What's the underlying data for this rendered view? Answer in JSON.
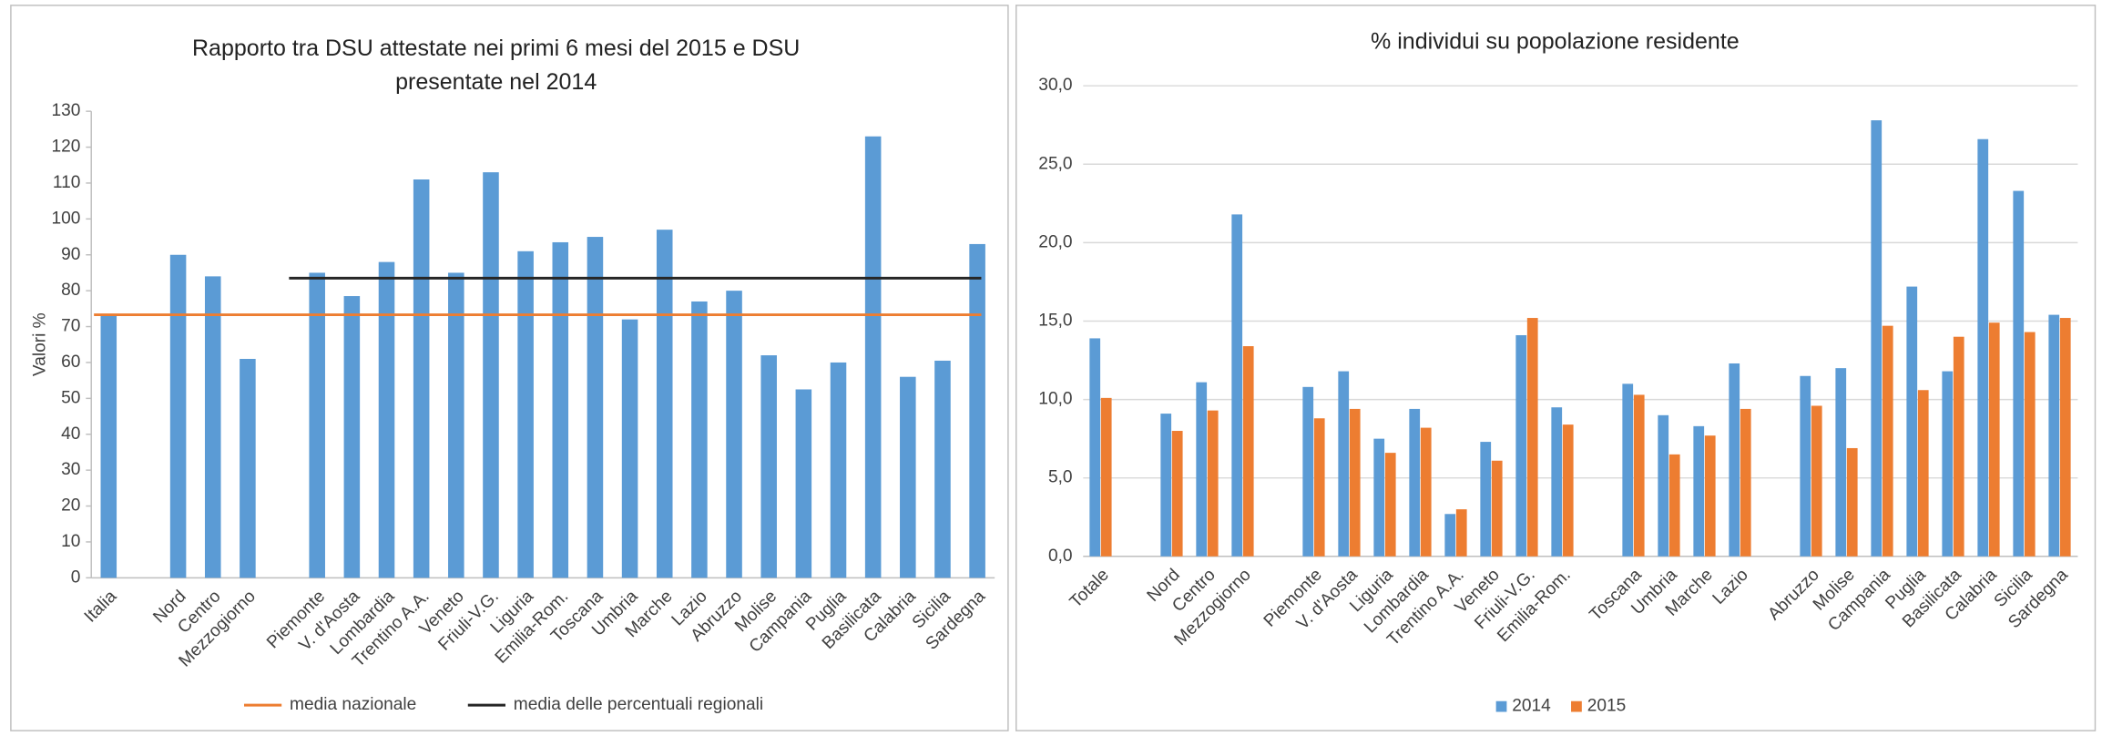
{
  "chart_data": [
    {
      "type": "bar",
      "title": [
        "Rapporto tra DSU attestate nei primi 6 mesi del 2015 e DSU",
        "presentate nel 2014"
      ],
      "ylabel": "Valori %",
      "categories": [
        "Italia",
        null,
        "Nord",
        "Centro",
        "Mezzogiorno",
        null,
        "Piemonte",
        "V. d'Aosta",
        "Lombardia",
        "Trentino A.A.",
        "Veneto",
        "Friuli-V.G.",
        "Liguria",
        "Emilia-Rom.",
        "Toscana",
        "Umbria",
        "Marche",
        "Lazio",
        "Abruzzo",
        "Molise",
        "Campania",
        "Puglia",
        "Basilicata",
        "Calabria",
        "Sicilia",
        "Sardegna"
      ],
      "series": [
        {
          "name": null,
          "color": "#5b9bd5",
          "values": [
            73,
            null,
            90,
            84,
            61,
            null,
            85,
            78.5,
            88,
            111,
            85,
            113,
            91,
            93.5,
            95,
            72,
            97,
            77,
            80,
            62,
            52.5,
            60,
            123,
            56,
            60.5,
            93
          ]
        }
      ],
      "reference_lines": [
        {
          "name": "media nazionale",
          "color": "#ed7d31",
          "value": 73.3
        },
        {
          "name": "media delle percentuali regionali",
          "color": "#262626",
          "value": 83.5
        }
      ],
      "ylim": [
        0,
        130
      ],
      "yticks": [
        0,
        10,
        20,
        30,
        40,
        50,
        60,
        70,
        80,
        90,
        100,
        110,
        120,
        130
      ],
      "grid": false
    },
    {
      "type": "bar",
      "title": [
        "% individui su popolazione residente"
      ],
      "categories": [
        "Totale",
        null,
        "Nord",
        "Centro",
        "Mezzogiorno",
        null,
        "Piemonte",
        "V. d'Aosta",
        "Liguria",
        "Lombardia",
        "Trentino A.A.",
        "Veneto",
        "Friuli-V.G.",
        "Emilia-Rom.",
        null,
        "Toscana",
        "Umbria",
        "Marche",
        "Lazio",
        null,
        "Abruzzo",
        "Molise",
        "Campania",
        "Puglia",
        "Basilicata",
        "Calabria",
        "Sicilia",
        "Sardegna"
      ],
      "series": [
        {
          "name": "2014",
          "color": "#5b9bd5",
          "values": [
            13.9,
            null,
            9.1,
            11.1,
            21.8,
            null,
            10.8,
            11.8,
            7.5,
            9.4,
            2.7,
            7.3,
            14.1,
            9.5,
            null,
            11.0,
            9.0,
            8.3,
            12.3,
            null,
            11.5,
            12.0,
            27.8,
            17.2,
            11.8,
            26.6,
            23.3,
            15.4
          ]
        },
        {
          "name": "2015",
          "color": "#ed7d31",
          "values": [
            10.1,
            null,
            8.0,
            9.3,
            13.4,
            null,
            8.8,
            9.4,
            6.6,
            8.2,
            3.0,
            6.1,
            15.2,
            8.4,
            null,
            10.3,
            6.5,
            7.7,
            9.4,
            null,
            9.6,
            6.9,
            14.7,
            10.6,
            14.0,
            14.9,
            14.3,
            15.2
          ]
        }
      ],
      "ylim": [
        0,
        30
      ],
      "yticks": [
        {
          "value": 0,
          "label": "0,0"
        },
        {
          "value": 5,
          "label": "5,0"
        },
        {
          "value": 10,
          "label": "10,0"
        },
        {
          "value": 15,
          "label": "15,0"
        },
        {
          "value": 20,
          "label": "20,0"
        },
        {
          "value": 25,
          "label": "25,0"
        },
        {
          "value": 30,
          "label": "30,0"
        }
      ],
      "grid": true
    }
  ]
}
